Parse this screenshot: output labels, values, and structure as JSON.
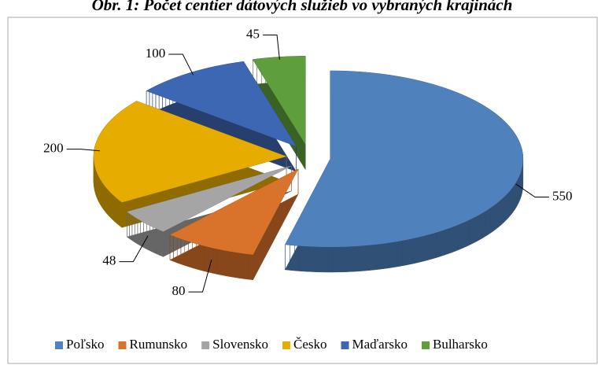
{
  "chart_data": {
    "type": "pie3d",
    "title": "Obr. 1: Počet centier dátových služieb vo vybraných krajinách",
    "categories": [
      "Poľsko",
      "Rumunsko",
      "Slovensko",
      "Česko",
      "Maďarsko",
      "Bulharsko"
    ],
    "values": [
      550,
      80,
      48,
      200,
      100,
      45
    ],
    "colors": [
      "#4f81bd",
      "#d9732b",
      "#a5a5a5",
      "#e6ac00",
      "#3d66b3",
      "#5f9e3c"
    ],
    "legend": "bottom"
  }
}
